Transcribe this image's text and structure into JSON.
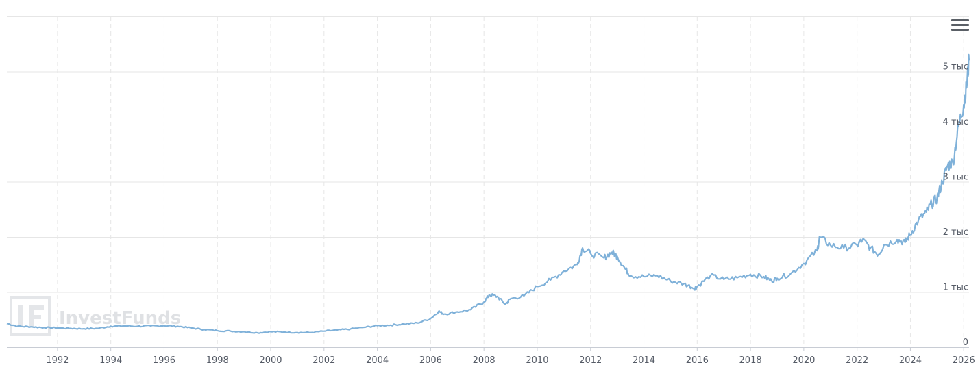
{
  "watermark": {
    "text": "InvestFunds",
    "logo": "IF"
  },
  "menu": {
    "icon": "hamburger-menu-icon"
  },
  "colors": {
    "line": "#7fb1d9",
    "grid": "#e6e6e6",
    "axis": "#c8ccd4"
  },
  "chart_data": {
    "type": "line",
    "title": "",
    "xlabel": "",
    "ylabel": "",
    "x_ticks": [
      "1992",
      "1994",
      "1996",
      "1998",
      "2000",
      "2002",
      "2004",
      "2006",
      "2008",
      "2010",
      "2012",
      "2014",
      "2016",
      "2018",
      "2020",
      "2022",
      "2024",
      "2026"
    ],
    "y_ticks": [
      {
        "value": 0,
        "label": "0"
      },
      {
        "value": 1000,
        "label": "1 тыс"
      },
      {
        "value": 2000,
        "label": "2 тыс"
      },
      {
        "value": 3000,
        "label": "3 тыс"
      },
      {
        "value": 4000,
        "label": "4 тыс"
      },
      {
        "value": 5000,
        "label": "5 тыс"
      }
    ],
    "xlim": [
      1990.1,
      2026.2
    ],
    "ylim": [
      0,
      6000
    ],
    "grid": {
      "x": "dashed",
      "y": "solid"
    },
    "legend": "none",
    "y_axis_position": "right",
    "series": [
      {
        "points": [
          [
            1990.1,
            430
          ],
          [
            1990.5,
            380
          ],
          [
            1991.0,
            370
          ],
          [
            1991.5,
            355
          ],
          [
            1992.0,
            350
          ],
          [
            1992.5,
            340
          ],
          [
            1993.0,
            335
          ],
          [
            1993.5,
            340
          ],
          [
            1994.0,
            380
          ],
          [
            1994.5,
            385
          ],
          [
            1995.0,
            380
          ],
          [
            1995.5,
            385
          ],
          [
            1996.0,
            390
          ],
          [
            1996.5,
            380
          ],
          [
            1997.0,
            350
          ],
          [
            1997.5,
            320
          ],
          [
            1998.0,
            300
          ],
          [
            1998.5,
            290
          ],
          [
            1999.0,
            280
          ],
          [
            1999.5,
            260
          ],
          [
            2000.0,
            280
          ],
          [
            2000.5,
            275
          ],
          [
            2001.0,
            265
          ],
          [
            2001.5,
            265
          ],
          [
            2002.0,
            290
          ],
          [
            2002.5,
            310
          ],
          [
            2003.0,
            330
          ],
          [
            2003.5,
            360
          ],
          [
            2004.0,
            390
          ],
          [
            2004.5,
            400
          ],
          [
            2005.0,
            420
          ],
          [
            2005.5,
            440
          ],
          [
            2006.0,
            520
          ],
          [
            2006.3,
            650
          ],
          [
            2006.5,
            600
          ],
          [
            2007.0,
            640
          ],
          [
            2007.5,
            680
          ],
          [
            2008.0,
            820
          ],
          [
            2008.2,
            950
          ],
          [
            2008.5,
            920
          ],
          [
            2008.8,
            780
          ],
          [
            2009.0,
            880
          ],
          [
            2009.5,
            930
          ],
          [
            2010.0,
            1100
          ],
          [
            2010.5,
            1220
          ],
          [
            2011.0,
            1380
          ],
          [
            2011.5,
            1500
          ],
          [
            2011.7,
            1800
          ],
          [
            2012.0,
            1700
          ],
          [
            2012.5,
            1620
          ],
          [
            2012.8,
            1720
          ],
          [
            2013.0,
            1650
          ],
          [
            2013.3,
            1420
          ],
          [
            2013.5,
            1300
          ],
          [
            2014.0,
            1280
          ],
          [
            2014.5,
            1300
          ],
          [
            2015.0,
            1200
          ],
          [
            2015.5,
            1150
          ],
          [
            2015.9,
            1070
          ],
          [
            2016.0,
            1100
          ],
          [
            2016.5,
            1300
          ],
          [
            2017.0,
            1230
          ],
          [
            2017.5,
            1260
          ],
          [
            2018.0,
            1320
          ],
          [
            2018.5,
            1280
          ],
          [
            2018.8,
            1200
          ],
          [
            2019.0,
            1250
          ],
          [
            2019.5,
            1330
          ],
          [
            2020.0,
            1520
          ],
          [
            2020.5,
            1750
          ],
          [
            2020.6,
            2000
          ],
          [
            2021.0,
            1850
          ],
          [
            2021.5,
            1800
          ],
          [
            2022.0,
            1850
          ],
          [
            2022.2,
            1950
          ],
          [
            2022.5,
            1800
          ],
          [
            2022.8,
            1680
          ],
          [
            2023.0,
            1850
          ],
          [
            2023.5,
            1950
          ],
          [
            2023.8,
            1900
          ],
          [
            2024.0,
            2050
          ],
          [
            2024.3,
            2300
          ],
          [
            2024.6,
            2450
          ],
          [
            2024.8,
            2600
          ],
          [
            2025.0,
            2700
          ],
          [
            2025.2,
            3000
          ],
          [
            2025.4,
            3300
          ],
          [
            2025.6,
            3350
          ],
          [
            2025.8,
            4000
          ],
          [
            2026.0,
            4400
          ],
          [
            2026.1,
            4700
          ],
          [
            2026.2,
            5200
          ]
        ]
      }
    ]
  }
}
